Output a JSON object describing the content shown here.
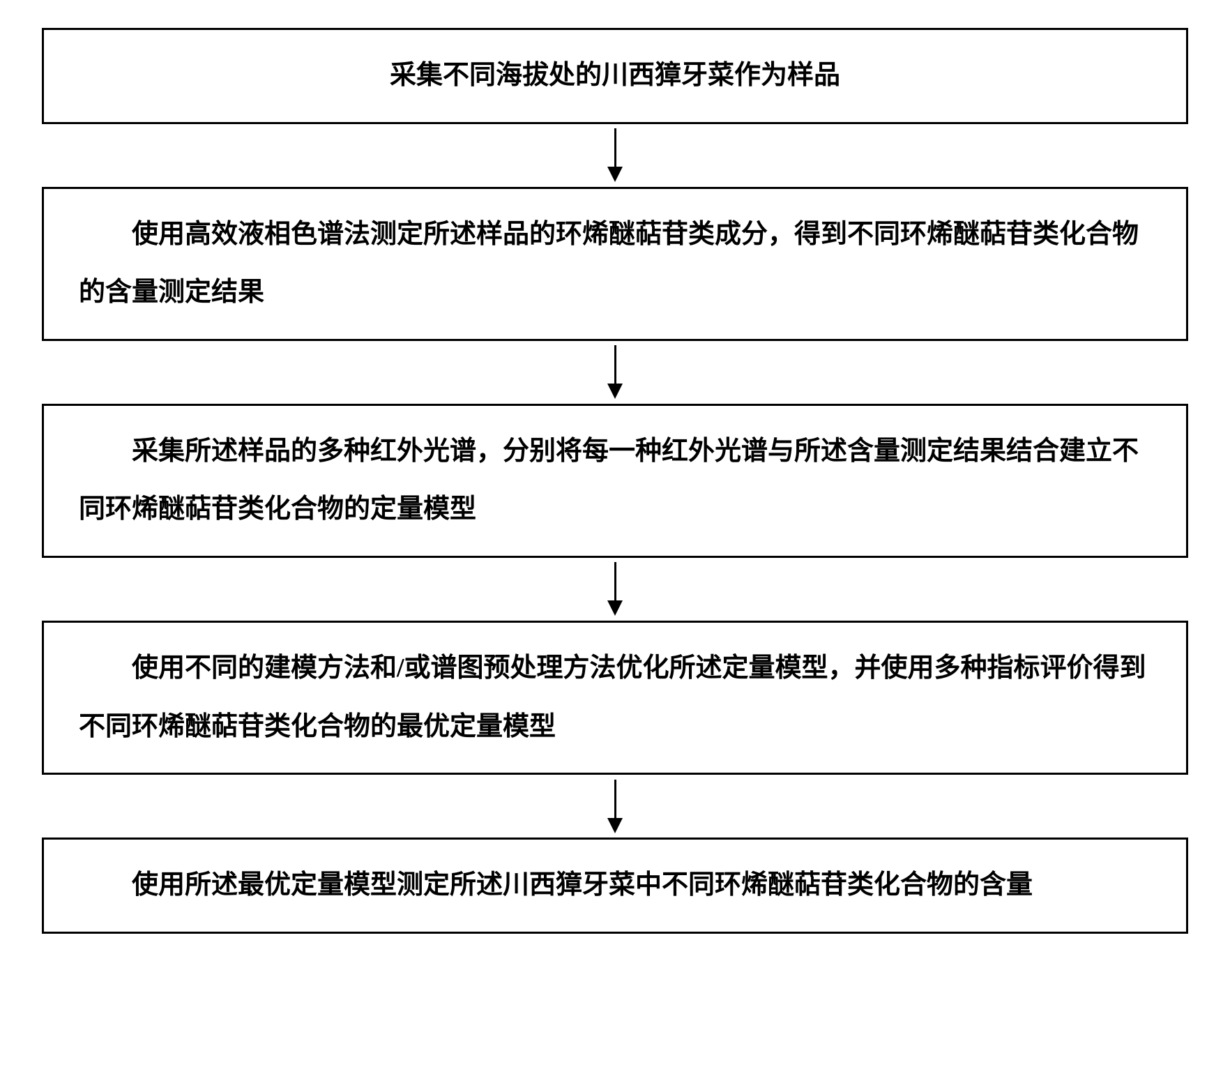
{
  "flowchart": {
    "type": "flowchart",
    "background_color": "#ffffff",
    "box_border_color": "#000000",
    "box_border_width": 3,
    "text_color": "#000000",
    "font_size": 38,
    "font_weight": "bold",
    "font_family": "SimSun",
    "arrow_color": "#000000",
    "arrow_line_width": 3,
    "arrow_head_size": 22,
    "spacing_between_boxes": 90,
    "nodes": [
      {
        "id": "step1",
        "text": "采集不同海拔处的川西獐牙菜作为样品",
        "centered": true
      },
      {
        "id": "step2",
        "text": "使用高效液相色谱法测定所述样品的环烯醚萜苷类成分，得到不同环烯醚萜苷类化合物的含量测定结果",
        "centered": false
      },
      {
        "id": "step3",
        "text": "采集所述样品的多种红外光谱，分别将每一种红外光谱与所述含量测定结果结合建立不同环烯醚萜苷类化合物的定量模型",
        "centered": false
      },
      {
        "id": "step4",
        "text": "使用不同的建模方法和/或谱图预处理方法优化所述定量模型，并使用多种指标评价得到不同环烯醚萜苷类化合物的最优定量模型",
        "centered": false
      },
      {
        "id": "step5",
        "text": "使用所述最优定量模型测定所述川西獐牙菜中不同环烯醚萜苷类化合物的含量",
        "centered": false
      }
    ],
    "edges": [
      {
        "from": "step1",
        "to": "step2"
      },
      {
        "from": "step2",
        "to": "step3"
      },
      {
        "from": "step3",
        "to": "step4"
      },
      {
        "from": "step4",
        "to": "step5"
      }
    ]
  }
}
